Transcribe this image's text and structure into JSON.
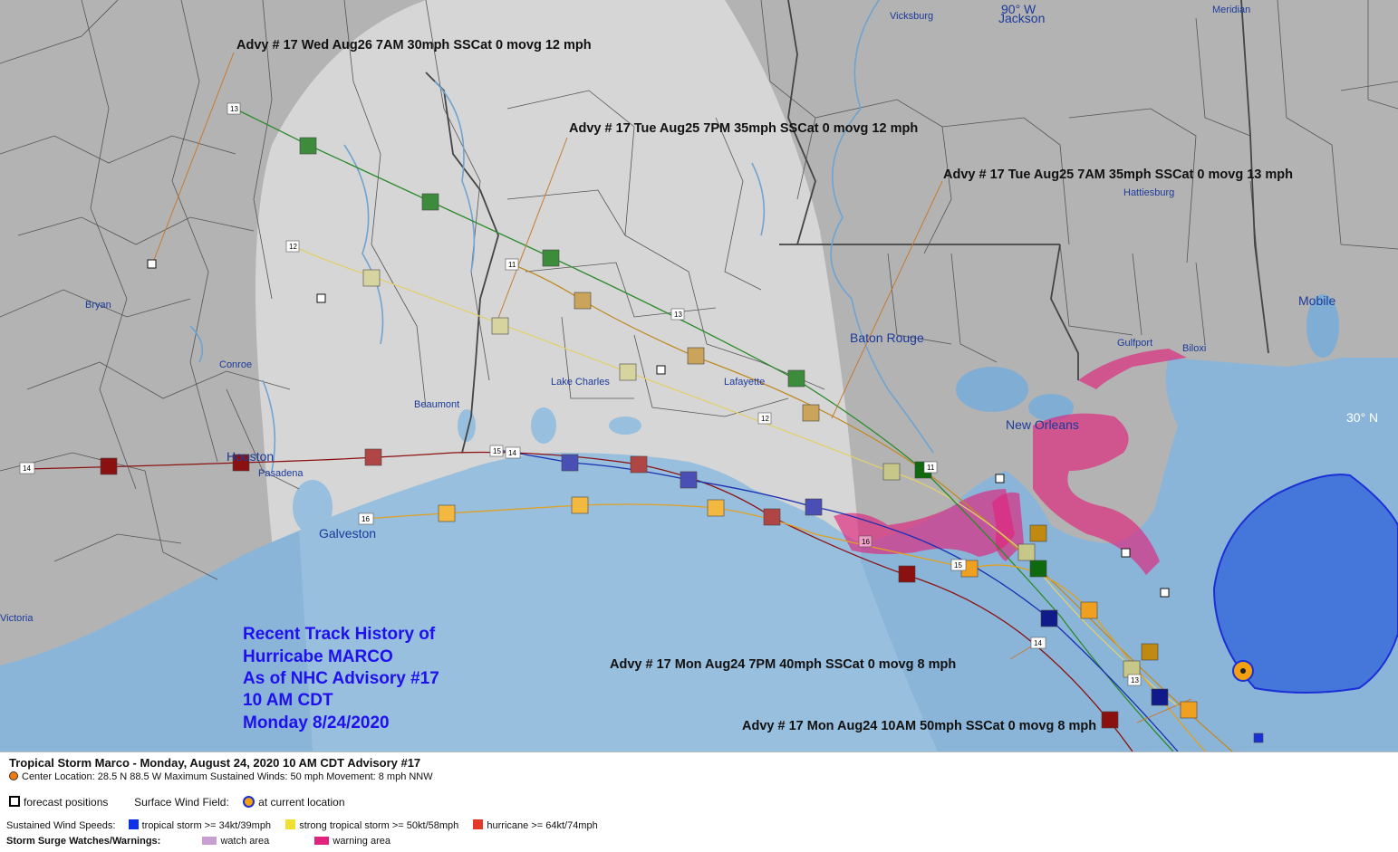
{
  "map": {
    "background_color": "#b3b3b3",
    "gulf_color": "#98bfdd",
    "cone_color": "#d9d9d9",
    "lat_label": "30° N",
    "lon_label": "90° W",
    "cities": [
      {
        "name": "Vicksburg",
        "large": false
      },
      {
        "name": "Jackson",
        "large": true
      },
      {
        "name": "Meridian",
        "large": false
      },
      {
        "name": "Hattiesburg",
        "large": false
      },
      {
        "name": "Mobile",
        "large": true
      },
      {
        "name": "Gulfport",
        "large": false
      },
      {
        "name": "Biloxi",
        "large": false
      },
      {
        "name": "Baton Rouge",
        "large": true
      },
      {
        "name": "New Orleans",
        "large": true
      },
      {
        "name": "Lafayette",
        "large": false
      },
      {
        "name": "Lake Charles",
        "large": false
      },
      {
        "name": "Beaumont",
        "large": false
      },
      {
        "name": "Houston",
        "large": true
      },
      {
        "name": "Pasadena",
        "large": false
      },
      {
        "name": "Galveston",
        "large": true
      },
      {
        "name": "Bryan",
        "large": false
      },
      {
        "name": "Conroe",
        "large": false
      },
      {
        "name": "Victoria",
        "large": false
      }
    ]
  },
  "advisories": [
    "Advy # 17 Wed Aug26 7AM  30mph SSCat 0 movg 12 mph",
    "Advy # 17 Tue Aug25 7PM  35mph SSCat 0 movg 12 mph",
    "Advy # 17 Tue Aug25 7AM  35mph SSCat 0 movg 13 mph",
    "Advy # 17 Mon Aug24 7PM  40mph SSCat 0 movg 8 mph",
    "Advy # 17 Mon Aug24 10AM  50mph SSCat 0 movg 8 mph"
  ],
  "track_labels": [
    "11",
    "12",
    "13",
    "14",
    "15",
    "16"
  ],
  "history": {
    "lines": [
      "Recent Track History of",
      "Hurricabe MARCO",
      "As of NHC Advisory #17",
      "10 AM CDT",
      "Monday 8/24/2020"
    ],
    "color": "#1f10ee"
  },
  "legend": {
    "title": "Tropical Storm Marco  -  Monday, August 24, 2020  10 AM CDT   Advisory #17",
    "center_line": "Center Location: 28.5 N  88.5 W   Maximum Sustained Winds: 50 mph   Movement: 8 mph NNW",
    "forecast_positions": "forecast positions",
    "surface_wind_label": "Surface Wind Field:",
    "at_current": "at current location",
    "sustained_label": "Sustained Wind Speeds:",
    "ts_label": "tropical storm >= 34kt/39mph",
    "sts_label": "strong tropical storm >= 50kt/58mph",
    "hu_label": "hurricane >= 64kt/74mph",
    "surge_label": "Storm Surge Watches/Warnings:",
    "watch_label": "watch area",
    "warning_label": "warning area",
    "colors": {
      "ts": "#1030e6",
      "sts": "#f2e030",
      "hu": "#e23a26",
      "watch": "#c79fd3",
      "warning": "#e0237c"
    }
  }
}
